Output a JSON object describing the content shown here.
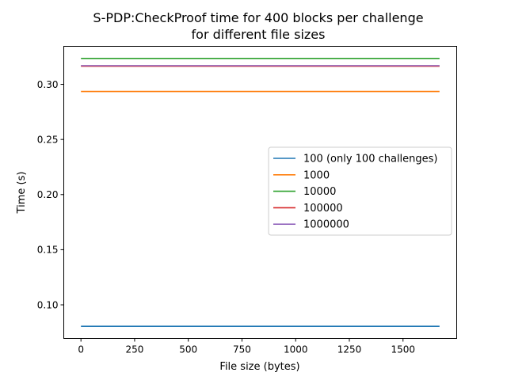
{
  "chart_data": {
    "type": "line",
    "title": [
      "S-PDP:CheckProof time for 400 blocks per challenge",
      "for different file sizes"
    ],
    "xlabel": "File size (bytes)",
    "ylabel": "Time (s)",
    "xlim": [
      -80,
      1750
    ],
    "ylim": [
      0.0695,
      0.3345
    ],
    "xticks": [
      0,
      250,
      500,
      750,
      1000,
      1250,
      1500
    ],
    "xtick_labels": [
      "0",
      "250",
      "500",
      "750",
      "1000",
      "1250",
      "1500"
    ],
    "yticks": [
      0.1,
      0.15,
      0.2,
      0.25,
      0.3
    ],
    "ytick_labels": [
      "0.10",
      "0.15",
      "0.20",
      "0.25",
      "0.30"
    ],
    "grid": false,
    "legend_position": "center-right",
    "series": [
      {
        "name": "100 (only 100 challenges)",
        "color": "#1f77b4",
        "x": [
          0,
          1670
        ],
        "y": [
          0.0805,
          0.0805
        ]
      },
      {
        "name": "1000",
        "color": "#ff7f0e",
        "x": [
          0,
          1670
        ],
        "y": [
          0.2935,
          0.2935
        ]
      },
      {
        "name": "10000",
        "color": "#2ca02c",
        "x": [
          0,
          1670
        ],
        "y": [
          0.3235,
          0.3235
        ]
      },
      {
        "name": "100000",
        "color": "#d62728",
        "x": [
          0,
          1670
        ],
        "y": [
          0.3165,
          0.3165
        ]
      },
      {
        "name": "1000000",
        "color": "#9467bd",
        "x": [
          0,
          1670
        ],
        "y": [
          0.317,
          0.317
        ]
      }
    ]
  }
}
